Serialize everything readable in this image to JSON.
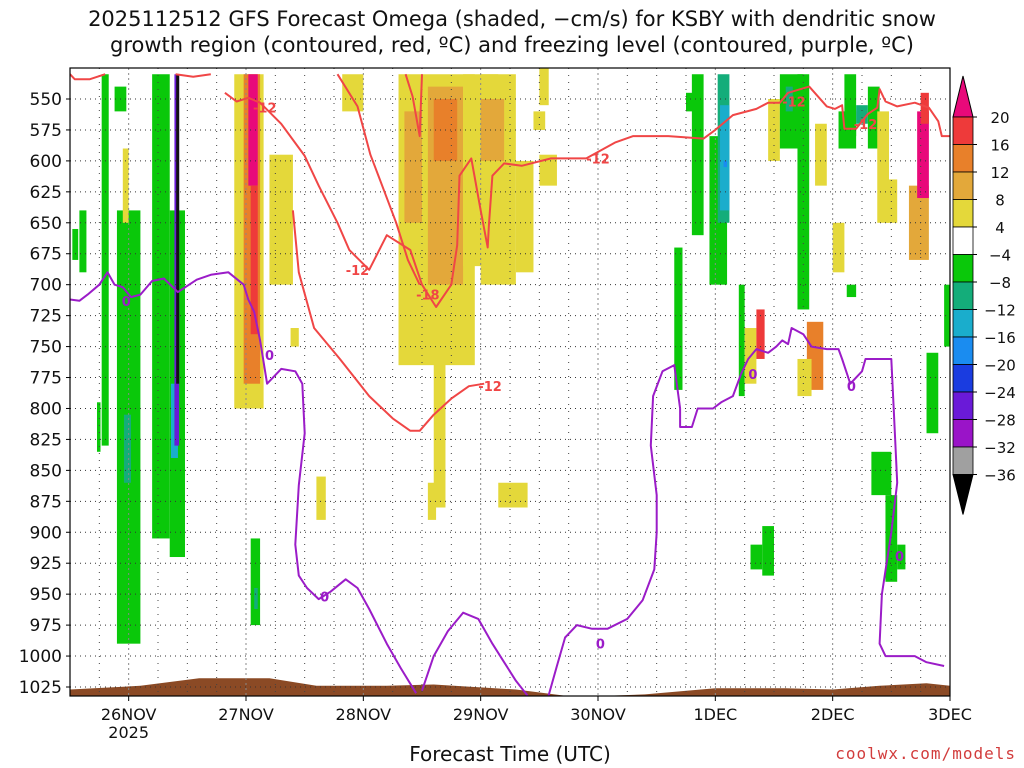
{
  "title_line1": "2025112512 GFS Forecast Omega (shaded, −cm/s) for KSBY with dendritic snow",
  "title_line2": "growth region (contoured, red, ºC) and freezing level (contoured, purple, ºC)",
  "xlabel": "Forecast Time (UTC)",
  "credit": "coolwx.com/models",
  "chart_data": {
    "type": "heatmap",
    "title": "2025112512 GFS Forecast Omega (shaded, −cm/s) for KSBY with dendritic snow growth region (contoured, red, ºC) and freezing level (contoured, purple, ºC)",
    "xlabel": "Forecast Time (UTC)",
    "ylabel": "",
    "x_tick_labels": [
      "26NOV",
      "27NOV",
      "28NOV",
      "29NOV",
      "30NOV",
      "1DEC",
      "2DEC",
      "3DEC"
    ],
    "x_year_label": "2025",
    "x_range_days": [
      -0.5,
      7.0
    ],
    "y_ticks_hpa": [
      550,
      575,
      600,
      625,
      650,
      675,
      700,
      725,
      750,
      775,
      800,
      825,
      850,
      875,
      900,
      925,
      950,
      975,
      1000,
      1025
    ],
    "y_range_hpa": [
      1035,
      530
    ],
    "grid": true,
    "colorbar": {
      "labels": [
        "20",
        "16",
        "12",
        "8",
        "4",
        "−4",
        "−8",
        "−12",
        "−16",
        "−20",
        "−24",
        "−28",
        "−32",
        "−36"
      ],
      "colors": [
        "#e8097a",
        "#ee3a3a",
        "#e8802a",
        "#e3a83a",
        "#e4d83a",
        "#ffffff",
        "#0ac80a",
        "#14ad7a",
        "#1aadcc",
        "#1a8cf0",
        "#1a3ce0",
        "#6a1ad8",
        "#9a14c8",
        "#a0a0a0"
      ]
    },
    "colors": {
      "red_contour": "#f04646",
      "purple_contour": "#9b1cc8",
      "terrain": "#8b4a25"
    },
    "red_contour_labels": [
      {
        "text": "-12",
        "day": 1.16,
        "p": 557
      },
      {
        "text": "-12",
        "day": 1.95,
        "p": 688
      },
      {
        "text": "-18",
        "day": 2.55,
        "p": 708
      },
      {
        "text": "-12",
        "day": 3.08,
        "p": 782
      },
      {
        "text": "-12",
        "day": 4.0,
        "p": 598
      },
      {
        "text": "-12",
        "day": 5.67,
        "p": 552
      },
      {
        "text": "-12",
        "day": 6.28,
        "p": 570
      }
    ],
    "purple_contour_labels": [
      {
        "text": "0",
        "day": -0.02,
        "p": 713
      },
      {
        "text": "0",
        "day": 1.2,
        "p": 757
      },
      {
        "text": "0",
        "day": 1.67,
        "p": 952
      },
      {
        "text": "0",
        "day": 4.02,
        "p": 990
      },
      {
        "text": "0",
        "day": 5.32,
        "p": 772
      },
      {
        "text": "0",
        "day": 6.16,
        "p": 782
      },
      {
        "text": "0",
        "day": 6.57,
        "p": 919
      }
    ],
    "red_contours": [
      [
        [
          -0.5,
          530
        ],
        [
          -0.46,
          534
        ],
        [
          -0.33,
          534
        ],
        [
          -0.2,
          530
        ]
      ],
      [
        [
          0.4,
          530
        ],
        [
          0.55,
          532
        ],
        [
          0.7,
          530
        ]
      ],
      [
        [
          0.82,
          545
        ],
        [
          0.92,
          552
        ],
        [
          1.02,
          549
        ],
        [
          1.12,
          553
        ],
        [
          1.3,
          570
        ],
        [
          1.5,
          596
        ],
        [
          1.62,
          620
        ],
        [
          1.78,
          650
        ],
        [
          1.88,
          672
        ],
        [
          2.05,
          688
        ],
        [
          2.2,
          660
        ],
        [
          2.4,
          672
        ],
        [
          2.5,
          700
        ],
        [
          2.62,
          718
        ],
        [
          2.75,
          700
        ],
        [
          2.8,
          668
        ],
        [
          2.82,
          612
        ],
        [
          2.92,
          598
        ],
        [
          3.0,
          640
        ],
        [
          3.06,
          670
        ],
        [
          3.07,
          652
        ],
        [
          3.1,
          612
        ],
        [
          3.2,
          602
        ],
        [
          3.35,
          604
        ],
        [
          3.6,
          598
        ],
        [
          3.9,
          598
        ],
        [
          4.15,
          585
        ],
        [
          4.3,
          580
        ],
        [
          4.6,
          580
        ],
        [
          4.9,
          582
        ],
        [
          5.0,
          575
        ],
        [
          5.15,
          563
        ],
        [
          5.35,
          558
        ],
        [
          5.45,
          553
        ],
        [
          5.55,
          553
        ],
        [
          5.62,
          545
        ],
        [
          5.8,
          540
        ],
        [
          5.95,
          556
        ],
        [
          6.02,
          558
        ],
        [
          6.08,
          555
        ],
        [
          6.1,
          574
        ],
        [
          6.2,
          574
        ],
        [
          6.3,
          562
        ],
        [
          6.38,
          557
        ],
        [
          6.4,
          542
        ],
        [
          6.45,
          552
        ],
        [
          6.55,
          556
        ],
        [
          6.7,
          553
        ],
        [
          6.82,
          557
        ],
        [
          6.9,
          568
        ],
        [
          6.93,
          580
        ],
        [
          7.0,
          580
        ]
      ],
      [
        [
          2.36,
          530
        ],
        [
          2.42,
          548
        ],
        [
          2.48,
          580
        ],
        [
          2.5,
          530
        ]
      ],
      [
        [
          1.78,
          530
        ],
        [
          1.95,
          556
        ],
        [
          2.06,
          595
        ],
        [
          2.18,
          625
        ],
        [
          2.28,
          650
        ],
        [
          2.38,
          680
        ],
        [
          2.48,
          700
        ]
      ],
      [
        [
          1.4,
          640
        ],
        [
          1.45,
          690
        ],
        [
          1.58,
          735
        ],
        [
          1.8,
          760
        ],
        [
          2.05,
          790
        ],
        [
          2.25,
          808
        ],
        [
          2.4,
          818
        ],
        [
          2.48,
          818
        ],
        [
          2.6,
          805
        ],
        [
          2.75,
          792
        ],
        [
          2.9,
          782
        ],
        [
          3.03,
          780
        ]
      ]
    ],
    "purple_contours": [
      [
        [
          -0.5,
          712
        ],
        [
          -0.42,
          713
        ],
        [
          -0.35,
          708
        ],
        [
          -0.25,
          700
        ],
        [
          -0.18,
          690
        ],
        [
          -0.12,
          700
        ],
        [
          -0.05,
          702
        ],
        [
          0.02,
          710
        ],
        [
          0.1,
          708
        ],
        [
          0.2,
          697
        ],
        [
          0.3,
          695
        ],
        [
          0.42,
          706
        ],
        [
          0.58,
          696
        ],
        [
          0.7,
          692
        ],
        [
          0.85,
          690
        ],
        [
          0.98,
          700
        ],
        [
          1.02,
          712
        ],
        [
          1.07,
          722
        ],
        [
          1.12,
          745
        ],
        [
          1.18,
          780
        ],
        [
          1.3,
          768
        ],
        [
          1.42,
          770
        ],
        [
          1.48,
          780
        ],
        [
          1.5,
          820
        ],
        [
          1.45,
          862
        ],
        [
          1.42,
          910
        ],
        [
          1.45,
          935
        ],
        [
          1.52,
          945
        ],
        [
          1.62,
          954
        ],
        [
          1.72,
          948
        ],
        [
          1.85,
          938
        ],
        [
          1.95,
          945
        ],
        [
          2.05,
          962
        ],
        [
          2.2,
          990
        ],
        [
          2.32,
          1010
        ],
        [
          2.45,
          1030
        ]
      ],
      [
        [
          2.5,
          1028
        ],
        [
          2.6,
          1000
        ],
        [
          2.72,
          980
        ],
        [
          2.85,
          965
        ],
        [
          2.98,
          970
        ],
        [
          3.1,
          990
        ],
        [
          3.2,
          1005
        ],
        [
          3.3,
          1020
        ],
        [
          3.4,
          1032
        ]
      ],
      [
        [
          3.57,
          1035
        ],
        [
          3.65,
          1008
        ],
        [
          3.72,
          985
        ],
        [
          3.82,
          975
        ],
        [
          3.95,
          978
        ],
        [
          4.08,
          978
        ],
        [
          4.25,
          970
        ],
        [
          4.38,
          955
        ],
        [
          4.48,
          930
        ],
        [
          4.5,
          900
        ],
        [
          4.5,
          870
        ],
        [
          4.45,
          830
        ],
        [
          4.47,
          790
        ],
        [
          4.55,
          770
        ],
        [
          4.65,
          765
        ],
        [
          4.7,
          800
        ],
        [
          4.7,
          815
        ],
        [
          4.8,
          815
        ],
        [
          4.85,
          800
        ],
        [
          4.98,
          800
        ],
        [
          5.05,
          795
        ],
        [
          5.15,
          790
        ],
        [
          5.22,
          772
        ],
        [
          5.28,
          760
        ],
        [
          5.35,
          752
        ],
        [
          5.45,
          755
        ],
        [
          5.52,
          750
        ],
        [
          5.57,
          745
        ],
        [
          5.62,
          748
        ],
        [
          5.65,
          735
        ],
        [
          5.75,
          740
        ],
        [
          5.82,
          750
        ],
        [
          5.95,
          752
        ],
        [
          6.05,
          752
        ],
        [
          6.08,
          760
        ],
        [
          6.15,
          780
        ],
        [
          6.25,
          770
        ],
        [
          6.28,
          760
        ],
        [
          6.42,
          760
        ],
        [
          6.5,
          760
        ],
        [
          6.52,
          800
        ],
        [
          6.55,
          860
        ],
        [
          6.5,
          900
        ],
        [
          6.42,
          950
        ],
        [
          6.4,
          990
        ],
        [
          6.45,
          1000
        ],
        [
          6.62,
          1000
        ],
        [
          6.7,
          1000
        ],
        [
          6.8,
          1005
        ],
        [
          6.95,
          1008
        ]
      ]
    ]
  }
}
